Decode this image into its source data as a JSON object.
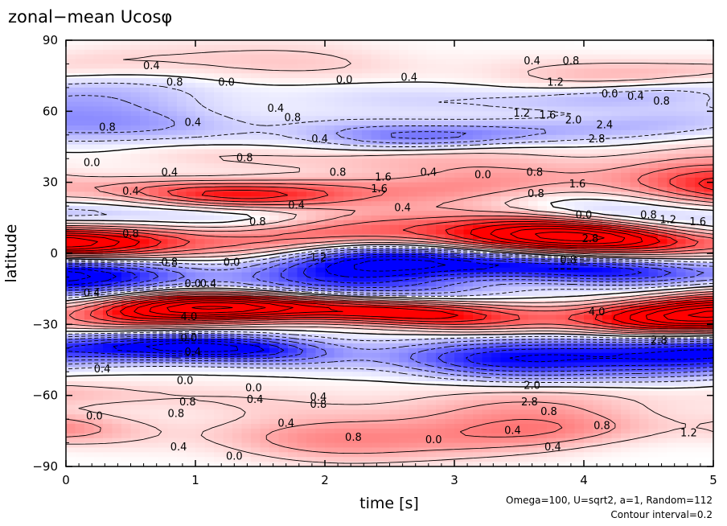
{
  "chart_data": {
    "type": "heatmap",
    "title": "zonal−mean Ucosφ",
    "xlabel": "time [s]",
    "ylabel": "latitude",
    "xlim": [
      0,
      5
    ],
    "ylim": [
      -90,
      90
    ],
    "x_ticks": [
      "0",
      "1",
      "2",
      "3",
      "4",
      "5"
    ],
    "y_ticks": [
      "90",
      "60",
      "30",
      "0",
      "−30",
      "−60",
      "−90"
    ],
    "grid": false,
    "colormap": {
      "negative": "#0000ff",
      "zero": "#ffffff",
      "positive": "#ff0000"
    },
    "contour_interval": 0.2,
    "annotations": [
      "Omega=100, U=sqrt2, a=1, Random=112",
      "Contour interval=0.2"
    ],
    "bands": [
      {
        "lat": 78,
        "amp": 0.6
      },
      {
        "lat": 67,
        "amp": -0.6
      },
      {
        "lat": 52,
        "amp": -1.2
      },
      {
        "lat": 42,
        "amp": 0.6
      },
      {
        "lat": 27,
        "amp": 2.0
      },
      {
        "lat": 17,
        "amp": -0.8
      },
      {
        "lat": 6,
        "amp": 3.4
      },
      {
        "lat": -6,
        "amp": -3.2
      },
      {
        "lat": -17,
        "amp": -1.0
      },
      {
        "lat": -25,
        "amp": 4.0
      },
      {
        "lat": -42,
        "amp": -2.8
      },
      {
        "lat": -62,
        "amp": 0.6
      },
      {
        "lat": -76,
        "amp": 1.2
      }
    ],
    "contour_labels": [
      {
        "text": "0.4",
        "t": 0.66,
        "lat": 79
      },
      {
        "text": "0.8",
        "t": 0.84,
        "lat": 72
      },
      {
        "text": "0.0",
        "t": 1.24,
        "lat": 72
      },
      {
        "text": "0.0",
        "t": 2.15,
        "lat": 73
      },
      {
        "text": "0.4",
        "t": 2.65,
        "lat": 74
      },
      {
        "text": "0.4",
        "t": 3.6,
        "lat": 81
      },
      {
        "text": "0.8",
        "t": 3.9,
        "lat": 81
      },
      {
        "text": "1.2",
        "t": 3.78,
        "lat": 72
      },
      {
        "text": "0.0",
        "t": 4.2,
        "lat": 67
      },
      {
        "text": "0.4",
        "t": 4.4,
        "lat": 66
      },
      {
        "text": "0.8",
        "t": 4.6,
        "lat": 64
      },
      {
        "text": "0.4",
        "t": 1.62,
        "lat": 61
      },
      {
        "text": "0.8",
        "t": 1.75,
        "lat": 57
      },
      {
        "text": "1.2",
        "t": 3.52,
        "lat": 59
      },
      {
        "text": "1.6",
        "t": 3.72,
        "lat": 58
      },
      {
        "text": "2.0",
        "t": 3.92,
        "lat": 56
      },
      {
        "text": "2.4",
        "t": 4.16,
        "lat": 54
      },
      {
        "text": "2.8",
        "t": 4.1,
        "lat": 48
      },
      {
        "text": "0.8",
        "t": 0.32,
        "lat": 53
      },
      {
        "text": "0.4",
        "t": 0.98,
        "lat": 55
      },
      {
        "text": "0.4",
        "t": 1.96,
        "lat": 48
      },
      {
        "text": "0.8",
        "t": 1.38,
        "lat": 40
      },
      {
        "text": "0.4",
        "t": 0.8,
        "lat": 34
      },
      {
        "text": "0.0",
        "t": 0.2,
        "lat": 38
      },
      {
        "text": "0.8",
        "t": 2.1,
        "lat": 34
      },
      {
        "text": "1.6",
        "t": 2.45,
        "lat": 32
      },
      {
        "text": "0.4",
        "t": 2.8,
        "lat": 34
      },
      {
        "text": "0.0",
        "t": 3.22,
        "lat": 33
      },
      {
        "text": "0.8",
        "t": 3.62,
        "lat": 34
      },
      {
        "text": "1.6",
        "t": 3.95,
        "lat": 29
      },
      {
        "text": "1.6",
        "t": 2.42,
        "lat": 27
      },
      {
        "text": "0.8",
        "t": 3.63,
        "lat": 25
      },
      {
        "text": "0.4",
        "t": 0.5,
        "lat": 26
      },
      {
        "text": "0.4",
        "t": 1.78,
        "lat": 20
      },
      {
        "text": "0.4",
        "t": 2.6,
        "lat": 19
      },
      {
        "text": "0.0",
        "t": 4.0,
        "lat": 16
      },
      {
        "text": "0.8",
        "t": 4.5,
        "lat": 16
      },
      {
        "text": "1.2",
        "t": 4.65,
        "lat": 14
      },
      {
        "text": "1.6",
        "t": 4.88,
        "lat": 13
      },
      {
        "text": "0.8",
        "t": 1.48,
        "lat": 13
      },
      {
        "text": "0.8",
        "t": 0.5,
        "lat": 8
      },
      {
        "text": "2.8",
        "t": 4.05,
        "lat": 6
      },
      {
        "text": "0.8",
        "t": 0.8,
        "lat": -4
      },
      {
        "text": "0.0",
        "t": 1.28,
        "lat": -4
      },
      {
        "text": "1.2",
        "t": 1.95,
        "lat": -2
      },
      {
        "text": "0.8",
        "t": 3.88,
        "lat": -3
      },
      {
        "text": "0.4",
        "t": 1.1,
        "lat": -13
      },
      {
        "text": "0.0",
        "t": 0.98,
        "lat": -13
      },
      {
        "text": "0.4",
        "t": 0.2,
        "lat": -17
      },
      {
        "text": "4.0",
        "t": 0.95,
        "lat": -27
      },
      {
        "text": "4.0",
        "t": 4.1,
        "lat": -25
      },
      {
        "text": "0.0",
        "t": 0.95,
        "lat": -36
      },
      {
        "text": "0.4",
        "t": 0.98,
        "lat": -42
      },
      {
        "text": "0.4",
        "t": 0.28,
        "lat": -49
      },
      {
        "text": "2.8",
        "t": 4.58,
        "lat": -37
      },
      {
        "text": "0.0",
        "t": 0.92,
        "lat": -54
      },
      {
        "text": "0.0",
        "t": 1.45,
        "lat": -57
      },
      {
        "text": "0.4",
        "t": 1.46,
        "lat": -62
      },
      {
        "text": "0.8",
        "t": 0.94,
        "lat": -63
      },
      {
        "text": "0.4",
        "t": 1.95,
        "lat": -61
      },
      {
        "text": "0.8",
        "t": 1.95,
        "lat": -64
      },
      {
        "text": "0.0",
        "t": 0.22,
        "lat": -69
      },
      {
        "text": "0.8",
        "t": 0.85,
        "lat": -68
      },
      {
        "text": "2.0",
        "t": 3.6,
        "lat": -56
      },
      {
        "text": "2.8",
        "t": 3.58,
        "lat": -63
      },
      {
        "text": "0.8",
        "t": 3.73,
        "lat": -67
      },
      {
        "text": "0.4",
        "t": 1.7,
        "lat": -72
      },
      {
        "text": "0.4",
        "t": 0.87,
        "lat": -82
      },
      {
        "text": "0.0",
        "t": 1.3,
        "lat": -86
      },
      {
        "text": "0.8",
        "t": 2.22,
        "lat": -78
      },
      {
        "text": "0.0",
        "t": 2.84,
        "lat": -79
      },
      {
        "text": "0.4",
        "t": 3.45,
        "lat": -75
      },
      {
        "text": "0.4",
        "t": 3.76,
        "lat": -82
      },
      {
        "text": "0.8",
        "t": 4.14,
        "lat": -73
      },
      {
        "text": "1.2",
        "t": 4.81,
        "lat": -76
      }
    ]
  }
}
